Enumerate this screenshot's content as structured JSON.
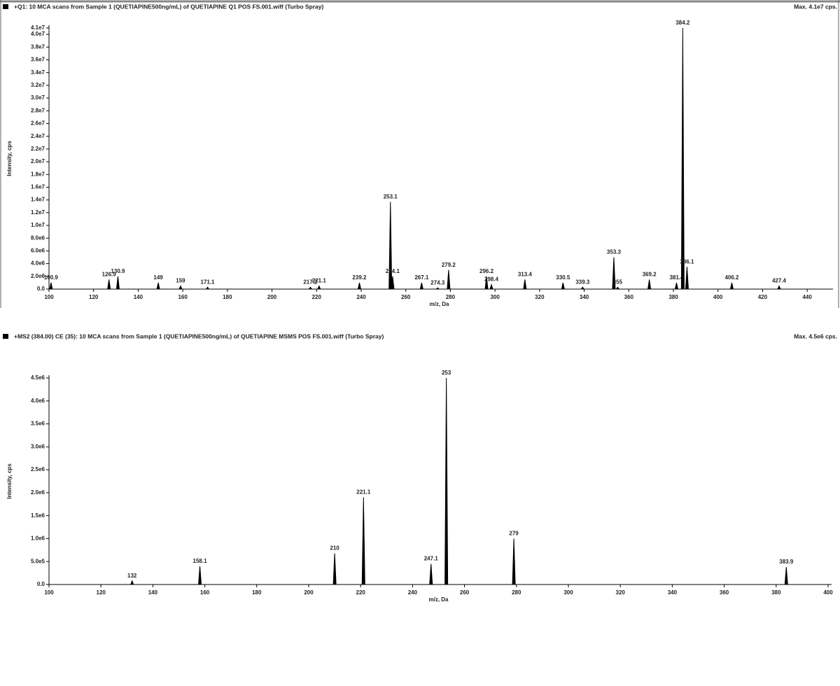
{
  "chart_data": [
    {
      "type": "stick",
      "title": "+Q1: 10 MCA scans from Sample 1 (QUETIAPINE500ng/mL) of QUETIAPINE Q1 POS FS.001.wiff (Turbo Spray)",
      "max_label": "Max. 4.1e7 cps.",
      "xlabel": "m/z, Da",
      "ylabel": "Intensity, cps",
      "color": "#000000",
      "x": [
        100.9,
        126.9,
        130.9,
        149.0,
        159.0,
        171.1,
        217.2,
        221.1,
        239.2,
        253.1,
        254.1,
        267.1,
        274.3,
        279.2,
        296.2,
        298.4,
        313.4,
        330.5,
        339.3,
        353.3,
        355.0,
        369.2,
        381.4,
        384.2,
        386.1,
        406.2,
        427.4
      ],
      "values": [
        1000000,
        1500000,
        2000000,
        1000000,
        500000,
        300000,
        300000,
        500000,
        1000000,
        13700000,
        2000000,
        1000000,
        200000,
        3000000,
        2000000,
        700000,
        1500000,
        1000000,
        300000,
        5000000,
        300000,
        1500000,
        1000000,
        41000000,
        3500000,
        1000000,
        500000
      ],
      "xlim": [
        100,
        450
      ],
      "ylim": [
        0,
        41000000
      ],
      "xticks": [
        100,
        120,
        140,
        160,
        180,
        200,
        220,
        240,
        260,
        280,
        300,
        320,
        340,
        360,
        380,
        400,
        420,
        440
      ],
      "yticks": [
        {
          "value": 0,
          "label": "0.0"
        },
        {
          "value": 2000000,
          "label": "2.0e6"
        },
        {
          "value": 4000000,
          "label": "4.0e6"
        },
        {
          "value": 6000000,
          "label": "6.0e6"
        },
        {
          "value": 8000000,
          "label": "8.0e6"
        },
        {
          "value": 10000000,
          "label": "1.0e7"
        },
        {
          "value": 12000000,
          "label": "1.2e7"
        },
        {
          "value": 14000000,
          "label": "1.4e7"
        },
        {
          "value": 16000000,
          "label": "1.6e7"
        },
        {
          "value": 18000000,
          "label": "1.8e7"
        },
        {
          "value": 20000000,
          "label": "2.0e7"
        },
        {
          "value": 22000000,
          "label": "2.2e7"
        },
        {
          "value": 24000000,
          "label": "2.4e7"
        },
        {
          "value": 26000000,
          "label": "2.6e7"
        },
        {
          "value": 28000000,
          "label": "2.8e7"
        },
        {
          "value": 30000000,
          "label": "3.0e7"
        },
        {
          "value": 32000000,
          "label": "3.2e7"
        },
        {
          "value": 34000000,
          "label": "3.4e7"
        },
        {
          "value": 36000000,
          "label": "3.6e7"
        },
        {
          "value": 38000000,
          "label": "3.8e7"
        },
        {
          "value": 40000000,
          "label": "4.0e7"
        },
        {
          "value": 41000000,
          "label": "4.1e7"
        }
      ]
    },
    {
      "type": "stick",
      "title": "+MS2 (384.00) CE (35): 10 MCA scans from Sample 1 (QUETIAPINE500ng/mL) of QUETIAPINE MSMS POS FS.001.wiff (Turbo Spray)",
      "max_label": "Max. 4.5e6 cps.",
      "xlabel": "m/z, Da",
      "ylabel": "Intensity, cps",
      "color": "#000000",
      "x": [
        132.0,
        158.1,
        210.0,
        221.1,
        247.1,
        253.0,
        279.0,
        383.9
      ],
      "values": [
        80000,
        400000,
        680000,
        1900000,
        450000,
        4500000,
        1000000,
        380000
      ],
      "xlim": [
        100,
        400
      ],
      "ylim": [
        0,
        4500000
      ],
      "xticks": [
        100,
        120,
        140,
        160,
        180,
        200,
        220,
        240,
        260,
        280,
        300,
        320,
        340,
        360,
        380,
        400
      ],
      "yticks": [
        {
          "value": 0,
          "label": "0.0"
        },
        {
          "value": 500000,
          "label": "5.0e5"
        },
        {
          "value": 1000000,
          "label": "1.0e6"
        },
        {
          "value": 1500000,
          "label": "1.5e6"
        },
        {
          "value": 2000000,
          "label": "2.0e6"
        },
        {
          "value": 2500000,
          "label": "2.5e6"
        },
        {
          "value": 3000000,
          "label": "3.0e6"
        },
        {
          "value": 3500000,
          "label": "3.5e6"
        },
        {
          "value": 4000000,
          "label": "4.0e6"
        },
        {
          "value": 4500000,
          "label": "4.5e6"
        }
      ]
    }
  ]
}
